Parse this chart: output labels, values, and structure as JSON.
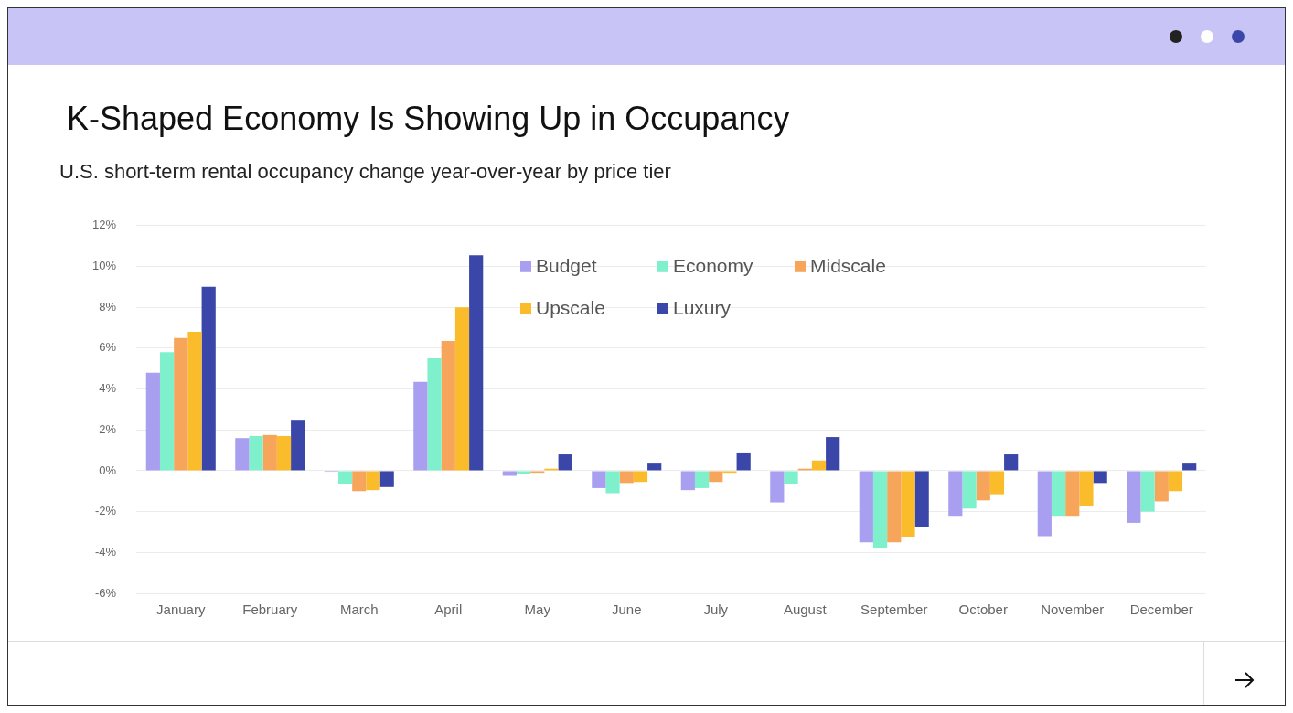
{
  "chart_data": {
    "type": "bar",
    "title": "K-Shaped Economy Is Showing Up in Occupancy",
    "subtitle": "U.S. short-term rental occupancy change year-over-year by price tier",
    "categories": [
      "January",
      "February",
      "March",
      "April",
      "May",
      "June",
      "July",
      "August",
      "September",
      "October",
      "November",
      "December"
    ],
    "series": [
      {
        "name": "Budget",
        "color": "#a89ff0",
        "values": [
          4.8,
          1.6,
          -0.05,
          4.35,
          -0.25,
          -0.85,
          -0.95,
          -1.55,
          -3.5,
          -2.25,
          -3.2,
          -2.55
        ]
      },
      {
        "name": "Economy",
        "color": "#7ff0cc",
        "values": [
          5.8,
          1.7,
          -0.65,
          5.5,
          -0.15,
          -1.1,
          -0.85,
          -0.65,
          -3.8,
          -1.85,
          -2.25,
          -2.0
        ]
      },
      {
        "name": "Midscale",
        "color": "#f7a55a",
        "values": [
          6.5,
          1.75,
          -1.0,
          6.35,
          -0.1,
          -0.6,
          -0.55,
          0.1,
          -3.5,
          -1.45,
          -2.25,
          -1.5
        ]
      },
      {
        "name": "Upscale",
        "color": "#fbbc2c",
        "values": [
          6.8,
          1.7,
          -0.95,
          8.0,
          0.1,
          -0.55,
          -0.1,
          0.5,
          -3.25,
          -1.15,
          -1.75,
          -1.0
        ]
      },
      {
        "name": "Luxury",
        "color": "#3a46a8",
        "values": [
          9.0,
          2.45,
          -0.8,
          10.55,
          0.8,
          0.35,
          0.85,
          1.65,
          -2.75,
          0.8,
          -0.6,
          0.35
        ]
      }
    ],
    "ylim": [
      -6,
      12
    ],
    "yticks": [
      {
        "value": -6,
        "label": "-6%"
      },
      {
        "value": -4,
        "label": "-4%"
      },
      {
        "value": -2,
        "label": "-2%"
      },
      {
        "value": 0,
        "label": "0%"
      },
      {
        "value": 2,
        "label": "2%"
      },
      {
        "value": 4,
        "label": "4%"
      },
      {
        "value": 6,
        "label": "6%"
      },
      {
        "value": 8,
        "label": "8%"
      },
      {
        "value": 10,
        "label": "10%"
      },
      {
        "value": 12,
        "label": "12%"
      }
    ],
    "grid": "y",
    "legend": "top"
  }
}
